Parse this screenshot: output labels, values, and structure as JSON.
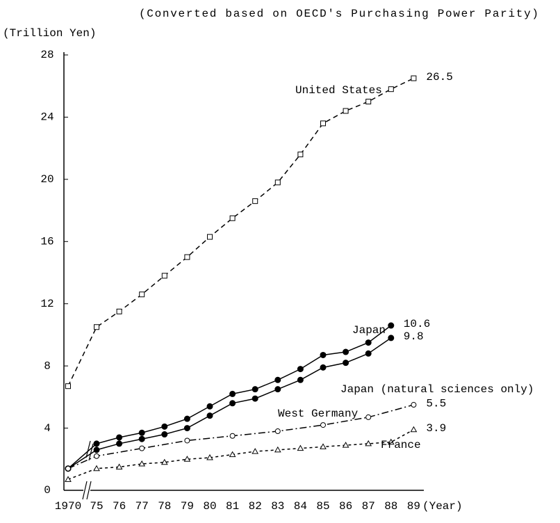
{
  "chart_data": {
    "type": "line",
    "subtitle": "(Converted based on OECD's Purchasing Power Parity)",
    "y_label": "(Trillion Yen)",
    "x_label": "(Year)",
    "ylim": [
      0,
      28
    ],
    "yticks": [
      0,
      4,
      8,
      12,
      16,
      20,
      24,
      28
    ],
    "xticks": [
      {
        "value": 1970,
        "label": "1970"
      },
      {
        "value": 1975,
        "label": "75"
      },
      {
        "value": 1976,
        "label": "76"
      },
      {
        "value": 1977,
        "label": "77"
      },
      {
        "value": 1978,
        "label": "78"
      },
      {
        "value": 1979,
        "label": "79"
      },
      {
        "value": 1980,
        "label": "80"
      },
      {
        "value": 1981,
        "label": "81"
      },
      {
        "value": 1982,
        "label": "82"
      },
      {
        "value": 1983,
        "label": "83"
      },
      {
        "value": 1984,
        "label": "84"
      },
      {
        "value": 1985,
        "label": "85"
      },
      {
        "value": 1986,
        "label": "86"
      },
      {
        "value": 1987,
        "label": "87"
      },
      {
        "value": 1988,
        "label": "88"
      },
      {
        "value": 1989,
        "label": "89"
      }
    ],
    "series": [
      {
        "name": "United States",
        "color": "#000000",
        "x": [
          1970,
          1975,
          1976,
          1977,
          1978,
          1979,
          1980,
          1981,
          1982,
          1983,
          1984,
          1985,
          1986,
          1987,
          1988,
          1989
        ],
        "values": [
          6.7,
          10.5,
          11.5,
          12.6,
          13.8,
          15.0,
          16.3,
          17.5,
          18.6,
          19.8,
          21.6,
          23.6,
          24.4,
          25.0,
          25.8,
          26.5
        ]
      },
      {
        "name": "Japan",
        "color": "#000000",
        "x": [
          1970,
          1975,
          1976,
          1977,
          1978,
          1979,
          1980,
          1981,
          1982,
          1983,
          1984,
          1985,
          1986,
          1987,
          1988
        ],
        "values": [
          1.4,
          3.0,
          3.4,
          3.7,
          4.1,
          4.6,
          5.4,
          6.2,
          6.5,
          7.1,
          7.8,
          8.7,
          8.9,
          9.5,
          10.6
        ]
      },
      {
        "name": "Japan (natural sciences only)",
        "color": "#000000",
        "x": [
          1970,
          1975,
          1976,
          1977,
          1978,
          1979,
          1980,
          1981,
          1982,
          1983,
          1984,
          1985,
          1986,
          1987,
          1988
        ],
        "values": [
          1.4,
          2.6,
          3.0,
          3.3,
          3.6,
          4.0,
          4.8,
          5.6,
          5.9,
          6.5,
          7.1,
          7.9,
          8.2,
          8.8,
          9.8
        ]
      },
      {
        "name": "West Germany",
        "color": "#000000",
        "x": [
          1970,
          1975,
          1977,
          1979,
          1981,
          1983,
          1985,
          1987,
          1989
        ],
        "values": [
          1.4,
          2.2,
          2.7,
          3.2,
          3.5,
          3.8,
          4.2,
          4.7,
          5.5
        ]
      },
      {
        "name": "France",
        "color": "#000000",
        "x": [
          1970,
          1975,
          1976,
          1977,
          1978,
          1979,
          1980,
          1981,
          1982,
          1983,
          1984,
          1985,
          1986,
          1987,
          1988,
          1989
        ],
        "values": [
          0.7,
          1.4,
          1.5,
          1.7,
          1.8,
          2.0,
          2.1,
          2.3,
          2.5,
          2.6,
          2.7,
          2.8,
          2.9,
          3.0,
          3.1,
          3.9
        ]
      }
    ]
  }
}
